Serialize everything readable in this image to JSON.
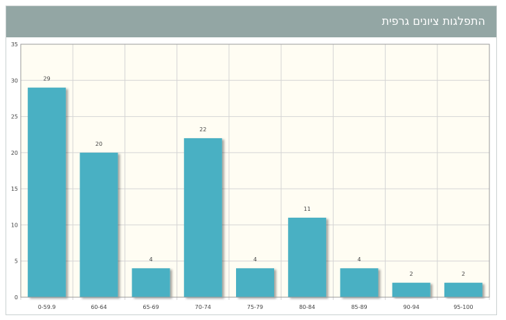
{
  "header": {
    "title": "התפלגות ציונים גרפית"
  },
  "colors": {
    "header_bg": "#93a6a4",
    "plot_bg": "#fffdf3",
    "bar": "#4ab0c3",
    "grid": "#d4d4d4"
  },
  "chart_data": {
    "type": "bar",
    "categories": [
      "0-59.9",
      "60-64",
      "65-69",
      "70-74",
      "75-79",
      "80-84",
      "85-89",
      "90-94",
      "95-100"
    ],
    "values": [
      29,
      20,
      4,
      22,
      4,
      11,
      4,
      2,
      2
    ],
    "title": "התפלגות ציונים גרפית",
    "xlabel": "",
    "ylabel": "",
    "ylim": [
      0,
      35
    ],
    "yticks": [
      0,
      5,
      10,
      15,
      20,
      25,
      30,
      35
    ],
    "grid": true,
    "data_labels": true
  }
}
